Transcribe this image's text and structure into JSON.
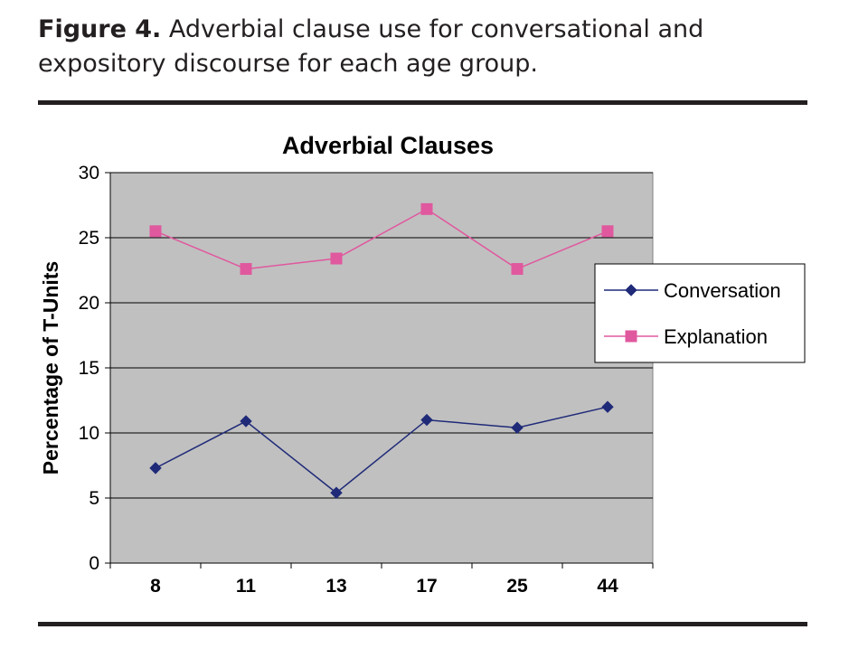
{
  "caption": {
    "label": "Figure 4.",
    "text": " Adverbial clause use for conversational and expository discourse for each age group."
  },
  "chart_data": {
    "type": "line",
    "title": "Adverbial Clauses",
    "xlabel": "",
    "ylabel": "Percentage of T-Units",
    "categories": [
      "8",
      "11",
      "13",
      "17",
      "25",
      "44"
    ],
    "ylim": [
      0,
      30
    ],
    "yticks": [
      "0",
      "5",
      "10",
      "15",
      "20",
      "25",
      "30"
    ],
    "grid": true,
    "legend_position": "right",
    "plot_background": "#c0c0c0",
    "series": [
      {
        "name": "Conversation",
        "marker": "diamond",
        "color": "#1f2a78",
        "values": [
          7.3,
          10.9,
          5.4,
          11.0,
          10.4,
          12.0
        ]
      },
      {
        "name": "Explanation",
        "marker": "square",
        "color": "#e0589e",
        "values": [
          25.5,
          22.6,
          23.4,
          27.2,
          22.6,
          25.5
        ]
      }
    ]
  }
}
